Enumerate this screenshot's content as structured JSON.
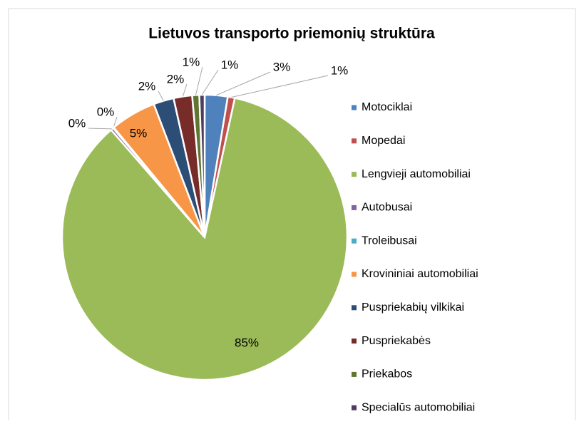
{
  "chart_data": {
    "type": "pie",
    "title": "Lietuvos transporto priemonių struktūra",
    "categories": [
      "Motociklai",
      "Mopedai",
      "Lengvieji automobiliai",
      "Autobusai",
      "Troleibusai",
      "Krovininiai automobiliai",
      "Puspriekabių vilkikai",
      "Puspriekabės",
      "Priekabos",
      "Specialūs automobiliai"
    ],
    "values": [
      2.6,
      0.8,
      85.2,
      0.3,
      0.1,
      5.2,
      2.3,
      2.1,
      0.8,
      0.6
    ],
    "value_labels": [
      "3%",
      "1%",
      "85%",
      "0%",
      "0%",
      "5%",
      "2%",
      "2%",
      "1%",
      "1%"
    ],
    "colors": [
      "#4f81bd",
      "#c0504d",
      "#9bbb59",
      "#8064a2",
      "#4bacc6",
      "#f79646",
      "#2c4d75",
      "#772c2a",
      "#5f7530",
      "#4d3b62"
    ],
    "legend": "right"
  }
}
